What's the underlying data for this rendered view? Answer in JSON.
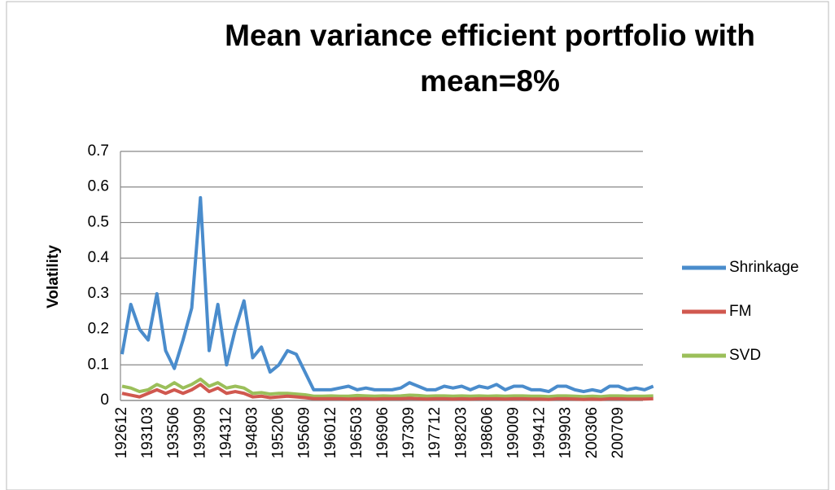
{
  "chart_data": {
    "type": "line",
    "title": "Mean variance efficient portfolio with",
    "subtitle": "mean=8%",
    "y_label": "Volatility",
    "categories": [
      "192612",
      null,
      null,
      "193103",
      null,
      null,
      "193506",
      null,
      null,
      "193909",
      null,
      null,
      "194312",
      null,
      null,
      "194803",
      null,
      null,
      "195206",
      null,
      null,
      "195609",
      null,
      null,
      "196012",
      null,
      null,
      "196503",
      null,
      null,
      "196906",
      null,
      null,
      "197309",
      null,
      null,
      "197712",
      null,
      null,
      "198203",
      null,
      null,
      "198606",
      null,
      null,
      "199009",
      null,
      null,
      "199412",
      null,
      null,
      "199903",
      null,
      null,
      "200306",
      null,
      null,
      "200709",
      null,
      null,
      null,
      null
    ],
    "series": [
      {
        "name": "Shrinkage",
        "color": "#4a8ccc",
        "values": [
          0.13,
          0.27,
          0.2,
          0.17,
          0.3,
          0.14,
          0.09,
          0.17,
          0.26,
          0.57,
          0.14,
          0.27,
          0.1,
          0.2,
          0.28,
          0.12,
          0.15,
          0.08,
          0.1,
          0.14,
          0.13,
          0.08,
          0.03,
          0.03,
          0.03,
          0.035,
          0.04,
          0.03,
          0.035,
          0.03,
          0.03,
          0.03,
          0.035,
          0.05,
          0.04,
          0.03,
          0.03,
          0.04,
          0.035,
          0.04,
          0.03,
          0.04,
          0.035,
          0.045,
          0.03,
          0.04,
          0.04,
          0.03,
          0.03,
          0.025,
          0.04,
          0.04,
          0.03,
          0.025,
          0.03,
          0.025,
          0.04,
          0.04,
          0.03,
          0.035,
          0.03,
          0.04
        ]
      },
      {
        "name": "FM",
        "color": "#d0584f",
        "values": [
          0.02,
          0.015,
          0.01,
          0.02,
          0.03,
          0.02,
          0.03,
          0.02,
          0.03,
          0.045,
          0.025,
          0.035,
          0.02,
          0.025,
          0.02,
          0.01,
          0.012,
          0.008,
          0.01,
          0.012,
          0.01,
          0.008,
          0.005,
          0.005,
          0.005,
          0.005,
          0.004,
          0.005,
          0.005,
          0.004,
          0.005,
          0.005,
          0.005,
          0.006,
          0.005,
          0.004,
          0.005,
          0.005,
          0.004,
          0.005,
          0.004,
          0.005,
          0.005,
          0.005,
          0.004,
          0.005,
          0.005,
          0.004,
          0.004,
          0.003,
          0.005,
          0.005,
          0.004,
          0.003,
          0.004,
          0.003,
          0.005,
          0.005,
          0.004,
          0.004,
          0.004,
          0.005
        ]
      },
      {
        "name": "SVD",
        "color": "#9bbf5a",
        "values": [
          0.04,
          0.035,
          0.025,
          0.03,
          0.045,
          0.035,
          0.05,
          0.035,
          0.045,
          0.06,
          0.04,
          0.05,
          0.035,
          0.04,
          0.035,
          0.02,
          0.022,
          0.018,
          0.02,
          0.02,
          0.018,
          0.016,
          0.012,
          0.012,
          0.013,
          0.012,
          0.012,
          0.014,
          0.013,
          0.012,
          0.013,
          0.012,
          0.013,
          0.015,
          0.014,
          0.012,
          0.013,
          0.013,
          0.012,
          0.013,
          0.012,
          0.013,
          0.012,
          0.013,
          0.012,
          0.013,
          0.013,
          0.012,
          0.012,
          0.011,
          0.013,
          0.013,
          0.012,
          0.011,
          0.012,
          0.011,
          0.013,
          0.013,
          0.012,
          0.012,
          0.012,
          0.013
        ]
      }
    ],
    "ylim": [
      0,
      0.7
    ],
    "yticks": [
      0,
      0.1,
      0.2,
      0.3,
      0.4,
      0.5,
      0.6,
      0.7
    ],
    "grid": true,
    "legend": "right"
  }
}
